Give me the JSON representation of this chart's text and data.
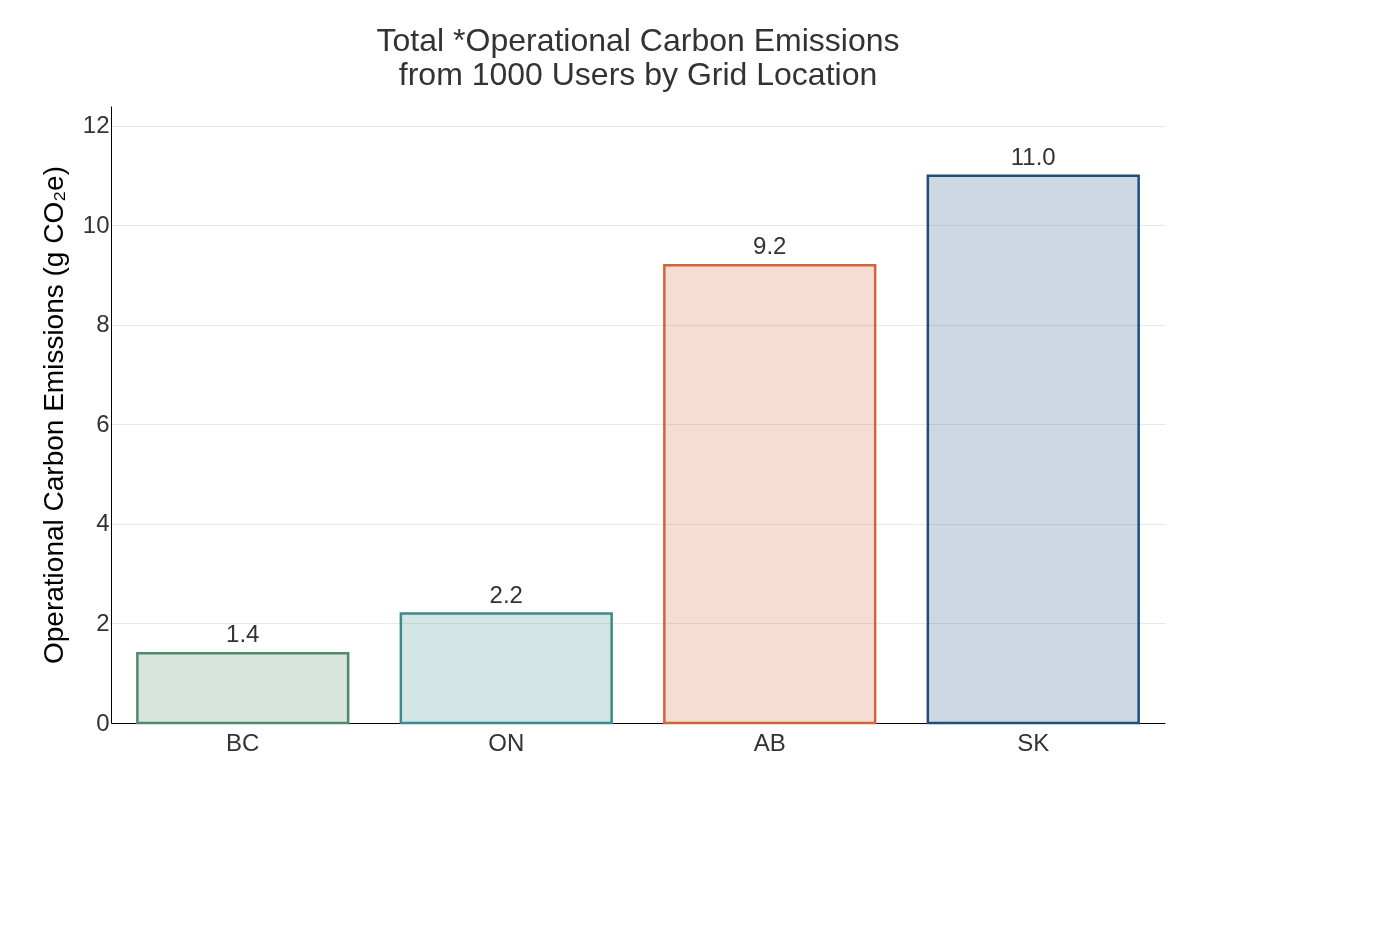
{
  "chart_data": {
    "type": "bar",
    "title": "Total *Operational Carbon Emissions\nfrom 1000 Users by Grid Location",
    "ylabel": "Operational Carbon Emissions (g CO₂e)",
    "categories": [
      "BC",
      "ON",
      "AB",
      "SK"
    ],
    "values": [
      1.4,
      2.2,
      9.2,
      11.0
    ],
    "value_labels": [
      "1.4",
      "2.2",
      "9.2",
      "11.0"
    ],
    "colors": [
      "#4f8a6b",
      "#3d8a8c",
      "#d0643a",
      "#1f4e79"
    ],
    "ylim": [
      0,
      12.4
    ],
    "yticks": [
      0,
      2,
      4,
      6,
      8,
      10,
      12
    ],
    "grid": "y"
  }
}
